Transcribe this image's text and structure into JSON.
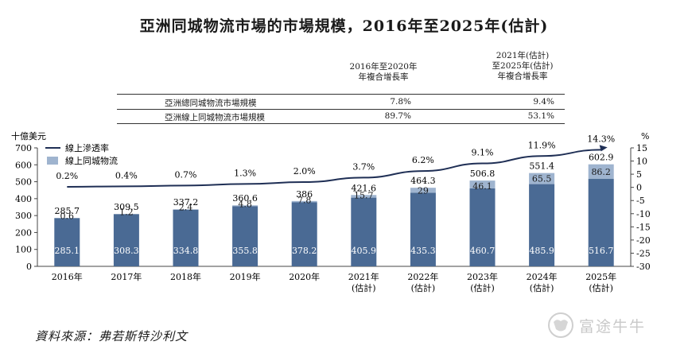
{
  "title": "亞洲同城物流市場的市場規模，2016年至2025年(估計)",
  "cagr_table": {
    "col1_header": [
      "2016年至2020年",
      "年複合增長率"
    ],
    "col2_header": [
      "2021年(估計)",
      "至2025年(估計)",
      "年複合增長率"
    ],
    "rows": [
      {
        "label": "亞洲總同城物流市場規模",
        "v1": "7.8%",
        "v2": "9.4%"
      },
      {
        "label": "亞洲線上同城物流市場規模",
        "v1": "89.7%",
        "v2": "53.1%"
      }
    ]
  },
  "chart_data": {
    "type": "bar",
    "categories": [
      "2016年",
      "2017年",
      "2018年",
      "2019年",
      "2020年",
      "2021年\n(估計)",
      "2022年\n(估計)",
      "2023年\n(估計)",
      "2024年\n(估計)",
      "2025年\n(估計)"
    ],
    "y_unit_label": "十億美元",
    "ylim": [
      0,
      700
    ],
    "yticks": [
      0,
      100,
      200,
      300,
      400,
      500,
      600,
      700
    ],
    "y2_unit_label": "%",
    "y2lim": [
      -30,
      15
    ],
    "y2ticks": [
      15,
      10,
      5,
      0,
      -5,
      -10,
      -15,
      -20,
      -25,
      -30
    ],
    "series": [
      {
        "name": "",
        "kind": "bar",
        "color": "#4a6a94",
        "values": [
          285.1,
          308.3,
          334.8,
          355.8,
          378.2,
          405.9,
          435.3,
          460.7,
          485.9,
          516.7
        ]
      },
      {
        "name": "線上同城物流",
        "kind": "bar",
        "color": "#9fb4cf",
        "values": [
          0.6,
          1.2,
          2.4,
          4.8,
          7.8,
          15.7,
          29.0,
          46.1,
          65.5,
          86.2
        ]
      },
      {
        "name": "線上滲透率",
        "kind": "line",
        "axis": "right",
        "color": "#1f2f55",
        "values": [
          0.2,
          0.4,
          0.7,
          1.3,
          2.0,
          3.7,
          6.2,
          9.1,
          11.9,
          14.3
        ],
        "labels": [
          "0.2%",
          "0.4%",
          "0.7%",
          "1.3%",
          "2.0%",
          "3.7%",
          "6.2%",
          "9.1%",
          "11.9%",
          "14.3%"
        ]
      }
    ],
    "totals": [
      285.7,
      309.5,
      337.2,
      360.6,
      386.0,
      421.6,
      464.3,
      506.8,
      551.4,
      602.9
    ],
    "legend": [
      {
        "label": "線上滲透率",
        "kind": "line"
      },
      {
        "label": "線上同城物流",
        "kind": "bar"
      }
    ]
  },
  "source": "資料來源：弗若斯特沙利文",
  "watermark": "富途牛牛"
}
